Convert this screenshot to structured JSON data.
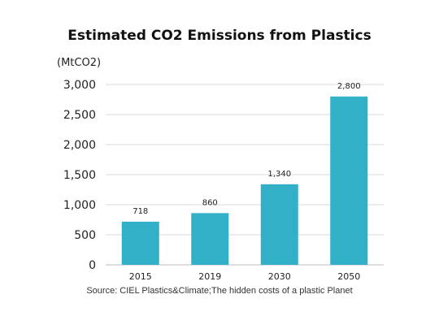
{
  "title": "Estimated CO2 Emissions from Plastics",
  "unit_label": "(MtCO2)",
  "source": "Source: CIEL Plastics&Climate;The hidden costs of a plastic Planet",
  "chart_data": {
    "type": "bar",
    "title": "Estimated CO2 Emissions from Plastics",
    "categories": [
      "2015",
      "2019",
      "2030",
      "2050"
    ],
    "values": [
      718,
      860,
      1340,
      2800
    ],
    "data_labels": [
      "718",
      "860",
      "1,340",
      "2,800"
    ],
    "ylabel": "(MtCO2)",
    "ylim": [
      0,
      3000
    ],
    "yticks": [
      0,
      500,
      1000,
      1500,
      2000,
      2500,
      3000
    ],
    "ytick_labels": [
      "0",
      "500",
      "1,000",
      "1,500",
      "2,000",
      "2,500",
      "3,000"
    ],
    "grid": true,
    "bar_color": "#31b0c8",
    "grid_color": "#d9d9d9"
  }
}
